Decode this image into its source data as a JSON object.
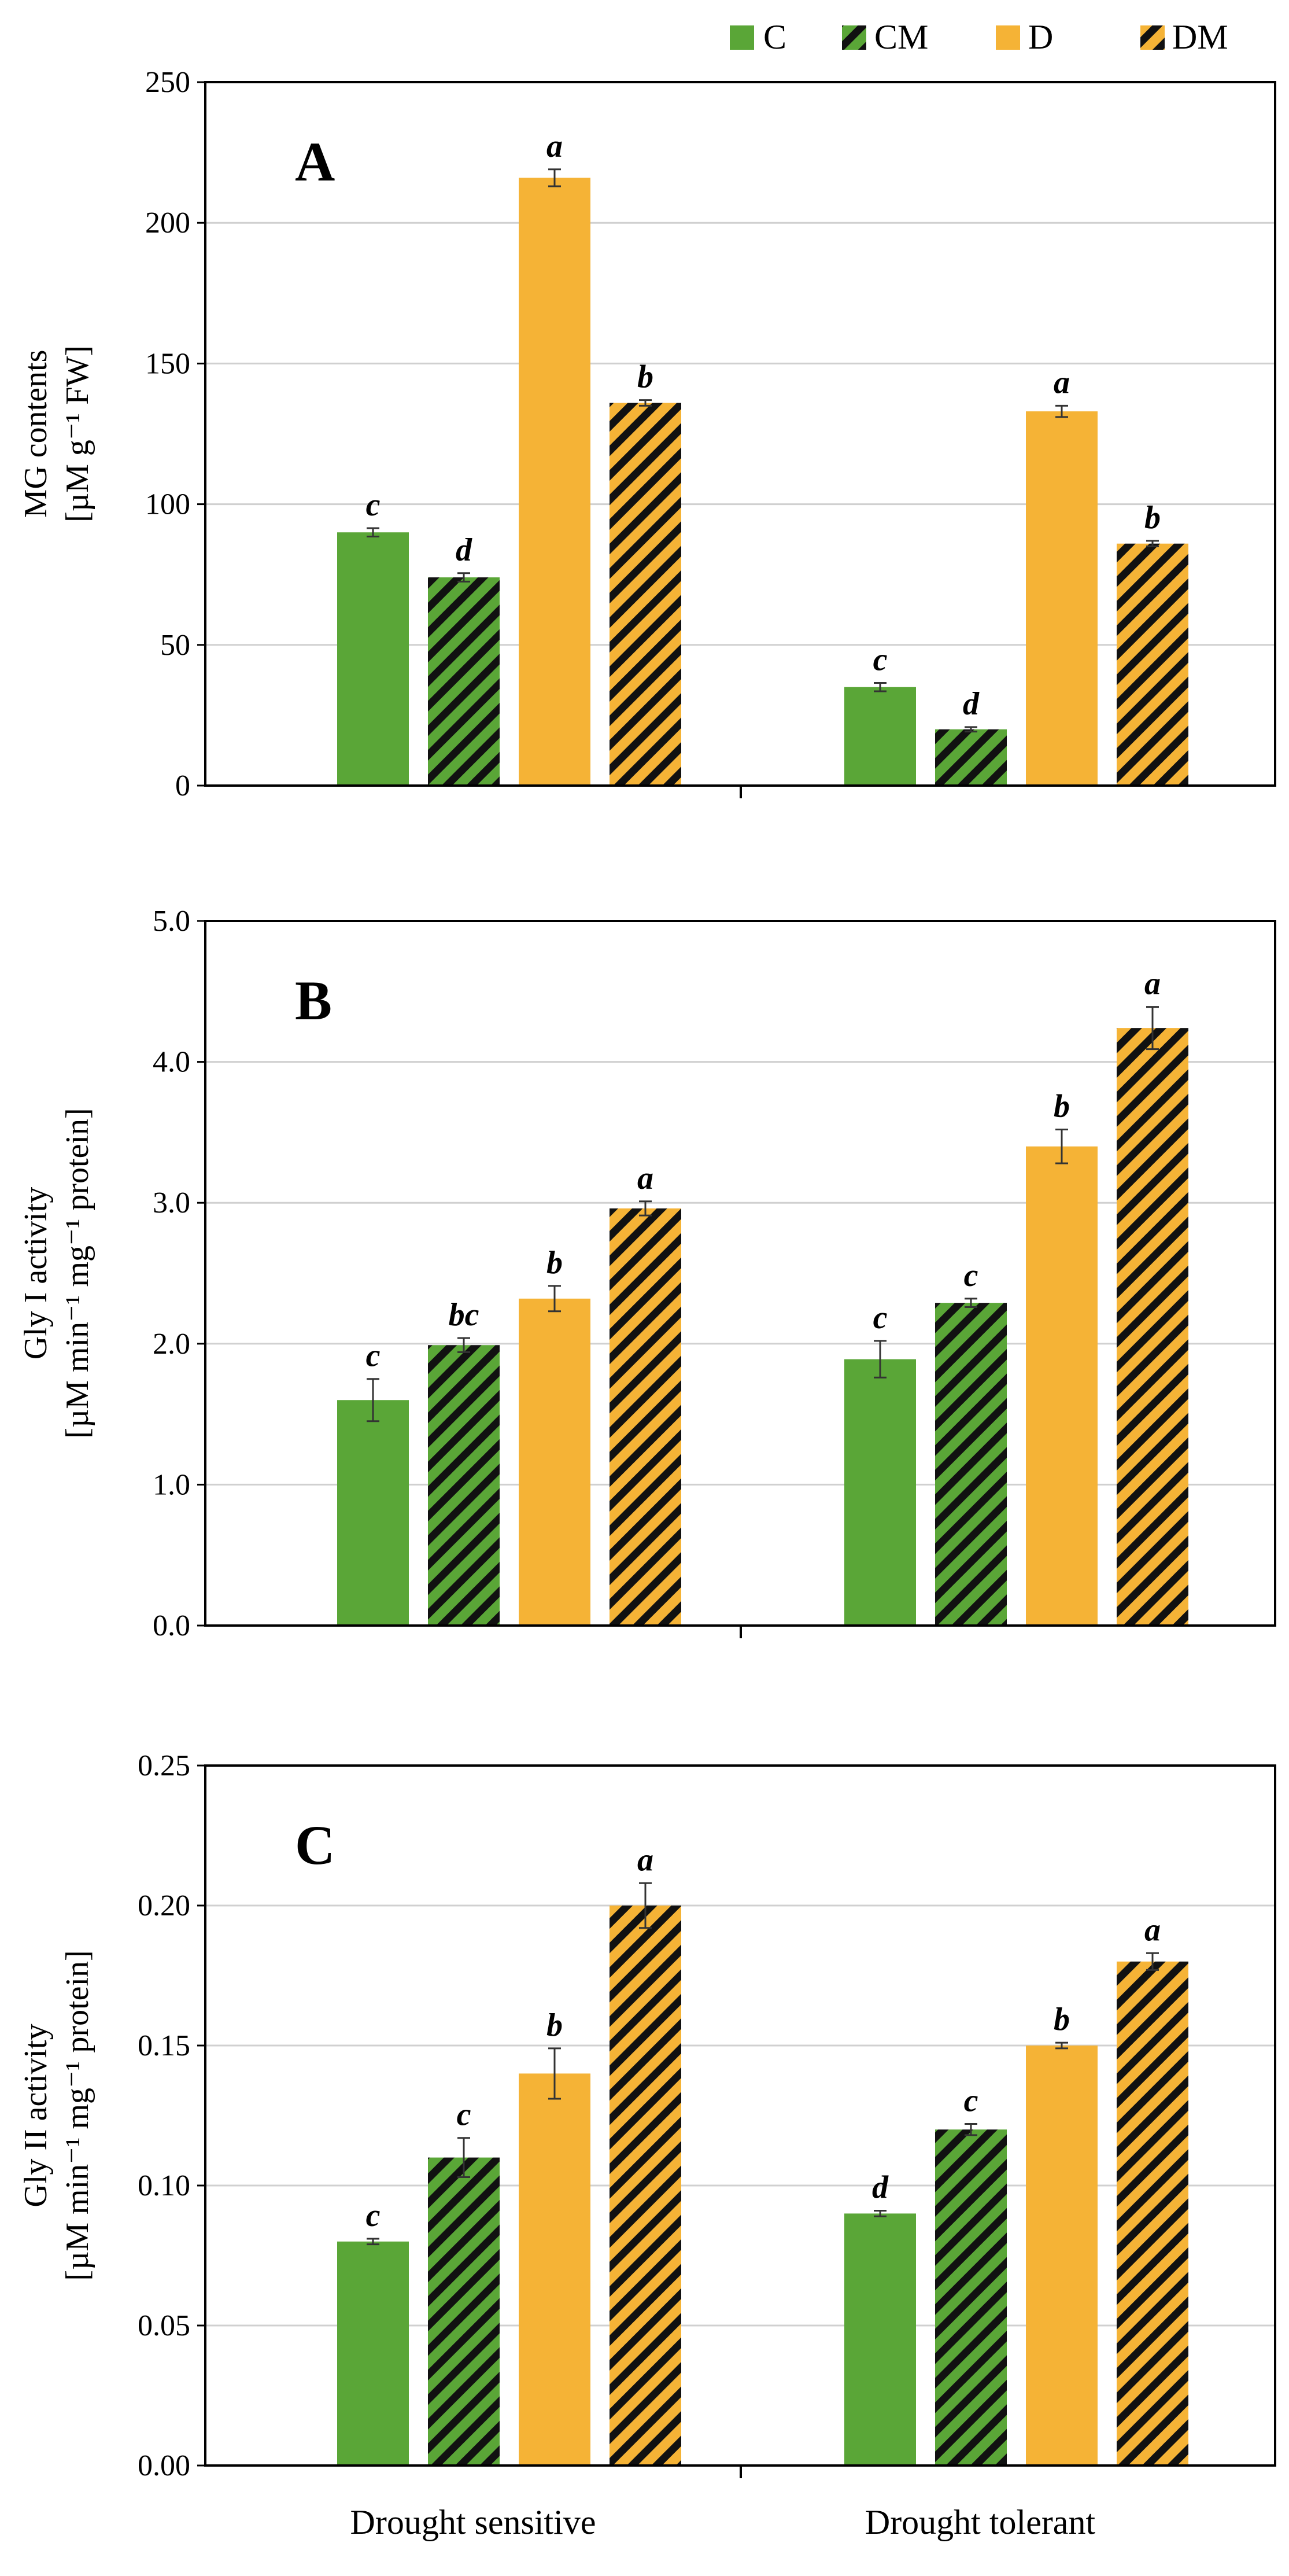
{
  "colors": {
    "green": "#5aa637",
    "orange": "#f5b336",
    "stripe": "#111111",
    "grid": "#d0d0d0",
    "axis": "#000000"
  },
  "legend": [
    {
      "label": "C",
      "color": "#5aa637",
      "hatched": false
    },
    {
      "label": "CM",
      "color": "#5aa637",
      "hatched": true
    },
    {
      "label": "D",
      "color": "#f5b336",
      "hatched": false
    },
    {
      "label": "DM",
      "color": "#f5b336",
      "hatched": true
    }
  ],
  "chart_data": [
    {
      "type": "bar",
      "panel_label": "A",
      "ylabel_line1": "MG contents",
      "ylabel_line2": "[µM g⁻¹ FW]",
      "ylim": [
        0,
        250
      ],
      "yticks": [
        "0",
        "50",
        "100",
        "150",
        "200",
        "250"
      ],
      "grid": true,
      "categories": [
        "Drought sensitive",
        "Drought tolerant"
      ],
      "series": [
        {
          "name": "C",
          "values": [
            90,
            35
          ],
          "errors": [
            1.5,
            1.5
          ],
          "labels": [
            "c",
            "c"
          ]
        },
        {
          "name": "CM",
          "values": [
            74,
            20
          ],
          "errors": [
            1.5,
            0.8
          ],
          "labels": [
            "d",
            "d"
          ]
        },
        {
          "name": "D",
          "values": [
            216,
            133
          ],
          "errors": [
            3,
            2
          ],
          "labels": [
            "a",
            "a"
          ]
        },
        {
          "name": "DM",
          "values": [
            136,
            86
          ],
          "errors": [
            1,
            1
          ],
          "labels": [
            "b",
            "b"
          ]
        }
      ]
    },
    {
      "type": "bar",
      "panel_label": "B",
      "ylabel_line1": "Gly I activity",
      "ylabel_line2": "[µM min⁻¹ mg⁻¹ protein]",
      "ylim": [
        0,
        5
      ],
      "yticks": [
        "0.0",
        "1.0",
        "2.0",
        "3.0",
        "4.0",
        "5.0"
      ],
      "grid": true,
      "categories": [
        "Drought sensitive",
        "Drought tolerant"
      ],
      "series": [
        {
          "name": "C",
          "values": [
            1.6,
            1.89
          ],
          "errors": [
            0.15,
            0.13
          ],
          "labels": [
            "c",
            "c"
          ]
        },
        {
          "name": "CM",
          "values": [
            1.99,
            2.29
          ],
          "errors": [
            0.05,
            0.03
          ],
          "labels": [
            "bc",
            "c"
          ]
        },
        {
          "name": "D",
          "values": [
            2.32,
            3.4
          ],
          "errors": [
            0.09,
            0.12
          ],
          "labels": [
            "b",
            "b"
          ]
        },
        {
          "name": "DM",
          "values": [
            2.96,
            4.24
          ],
          "errors": [
            0.05,
            0.15
          ],
          "labels": [
            "a",
            "a"
          ]
        }
      ]
    },
    {
      "type": "bar",
      "panel_label": "C",
      "ylabel_line1": "Gly II activity",
      "ylabel_line2": "[µM min⁻¹ mg⁻¹ protein]",
      "ylim": [
        0,
        0.25
      ],
      "yticks": [
        "0.00",
        "0.05",
        "0.10",
        "0.15",
        "0.20",
        "0.25"
      ],
      "grid": true,
      "categories": [
        "Drought sensitive",
        "Drought tolerant"
      ],
      "series": [
        {
          "name": "C",
          "values": [
            0.08,
            0.09
          ],
          "errors": [
            0.001,
            0.001
          ],
          "labels": [
            "c",
            "d"
          ]
        },
        {
          "name": "CM",
          "values": [
            0.11,
            0.12
          ],
          "errors": [
            0.007,
            0.002
          ],
          "labels": [
            "c",
            "c"
          ]
        },
        {
          "name": "D",
          "values": [
            0.14,
            0.15
          ],
          "errors": [
            0.009,
            0.001
          ],
          "labels": [
            "b",
            "b"
          ]
        },
        {
          "name": "DM",
          "values": [
            0.2,
            0.18
          ],
          "errors": [
            0.008,
            0.003
          ],
          "labels": [
            "a",
            "a"
          ]
        }
      ]
    }
  ]
}
